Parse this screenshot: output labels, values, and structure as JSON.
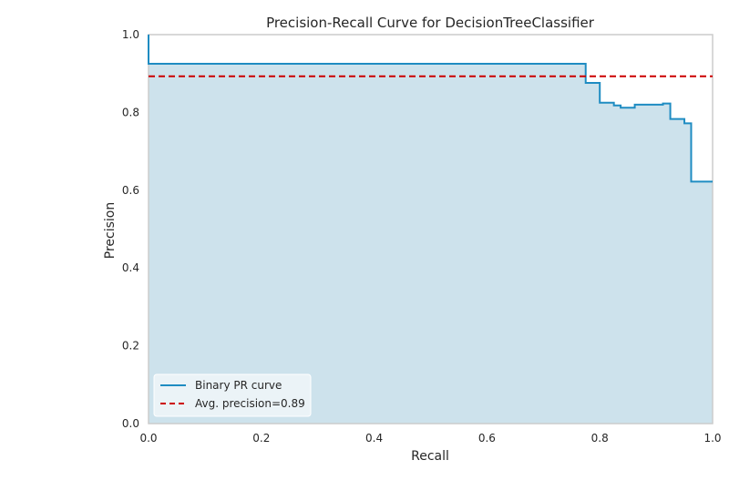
{
  "chart_data": {
    "type": "line",
    "title": "Precision-Recall Curve for DecisionTreeClassifier",
    "xlabel": "Recall",
    "ylabel": "Precision",
    "xlim": [
      0.0,
      1.0
    ],
    "ylim": [
      0.0,
      1.0
    ],
    "xticks": [
      "0.0",
      "0.2",
      "0.4",
      "0.6",
      "0.8",
      "1.0"
    ],
    "yticks": [
      "0.0",
      "0.2",
      "0.4",
      "0.6",
      "0.8",
      "1.0"
    ],
    "grid": false,
    "legend_position": "lower-left",
    "series": [
      {
        "name": "Binary PR curve",
        "style": "step",
        "color": "#1f8cc2",
        "fill_color": "#cde2ec",
        "points": [
          [
            0.0,
            1.0
          ],
          [
            0.0,
            0.925
          ],
          [
            0.775,
            0.925
          ],
          [
            0.775,
            0.876
          ],
          [
            0.8,
            0.876
          ],
          [
            0.8,
            0.825
          ],
          [
            0.825,
            0.825
          ],
          [
            0.825,
            0.818
          ],
          [
            0.837,
            0.818
          ],
          [
            0.837,
            0.812
          ],
          [
            0.862,
            0.812
          ],
          [
            0.862,
            0.82
          ],
          [
            0.912,
            0.82
          ],
          [
            0.912,
            0.823
          ],
          [
            0.925,
            0.823
          ],
          [
            0.925,
            0.783
          ],
          [
            0.95,
            0.783
          ],
          [
            0.95,
            0.772
          ],
          [
            0.962,
            0.772
          ],
          [
            0.962,
            0.622
          ],
          [
            1.0,
            0.622
          ]
        ]
      },
      {
        "name": "Avg. precision=0.89",
        "style": "dashed",
        "color": "#cc0000",
        "value": 0.893
      }
    ]
  }
}
